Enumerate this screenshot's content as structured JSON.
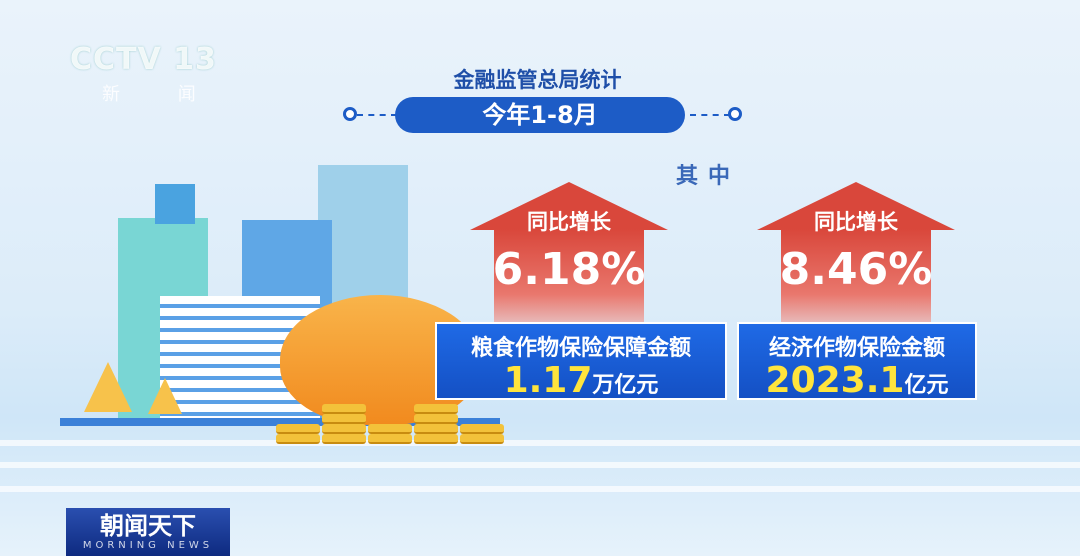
{
  "broadcaster": {
    "logo": "CCTV 13",
    "channel": "新 闻"
  },
  "header": {
    "title": "金融监管总局统计",
    "period": "今年1-8月"
  },
  "subtitle": "其中",
  "stats": [
    {
      "growth_label": "同比增长",
      "growth": "6.18%",
      "name": "粮食作物保险保障金额",
      "value": "1.17",
      "unit": "万亿元"
    },
    {
      "growth_label": "同比增长",
      "growth": "8.46%",
      "name": "经济作物保险金额",
      "value": "2023.1",
      "unit": "亿元"
    }
  ],
  "program": {
    "name": "朝闻天下",
    "english": "MORNING NEWS"
  },
  "colors": {
    "arrow": "#d9473b",
    "box": "#1a5fd8",
    "value": "#ffe43c",
    "pill": "#1d5cc6"
  }
}
